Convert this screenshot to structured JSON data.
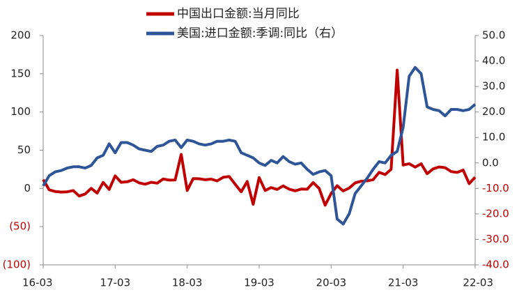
{
  "chart_data": {
    "type": "line",
    "x": [
      "16-03",
      null,
      null,
      null,
      null,
      null,
      null,
      null,
      null,
      null,
      null,
      null,
      "17-03",
      null,
      null,
      null,
      null,
      null,
      null,
      null,
      null,
      null,
      null,
      null,
      "18-03",
      null,
      null,
      null,
      null,
      null,
      null,
      null,
      null,
      null,
      null,
      null,
      "19-03",
      null,
      null,
      null,
      null,
      null,
      null,
      null,
      null,
      null,
      null,
      null,
      "20-03",
      null,
      null,
      null,
      null,
      null,
      null,
      null,
      null,
      null,
      null,
      null,
      "21-03",
      null,
      null,
      null,
      null,
      null,
      null,
      null,
      null,
      null,
      null,
      null,
      "22-03"
    ],
    "series": [
      {
        "name": "中国出口金额:当月同比",
        "color": "#c00000",
        "values": [
          11.5,
          -1.8,
          -4.1,
          -4.8,
          -4.4,
          -2.8,
          -10,
          -7.3,
          0.1,
          -6.1,
          7.9,
          -1.3,
          16.4,
          8,
          8.7,
          11.3,
          7.2,
          5.5,
          8.1,
          6.9,
          12.3,
          10.9,
          11.1,
          44.5,
          -2.7,
          12.9,
          12.6,
          11.3,
          12.2,
          9.8,
          14.5,
          15.6,
          5.4,
          -4.4,
          9.1,
          -20.8,
          14.2,
          -2.7,
          1.1,
          -1.3,
          3.3,
          -1,
          -3.2,
          -0.9,
          -1.1,
          7.6,
          0,
          -22,
          -6.6,
          3.5,
          -3.3,
          0.5,
          7.2,
          9.5,
          9.9,
          11.4,
          21.1,
          18.1,
          25,
          154.9,
          30.6,
          32.3,
          27.9,
          32.2,
          19.3,
          25.6,
          28.1,
          27.1,
          22,
          20.9,
          24,
          6.2,
          14.7
        ]
      },
      {
        "name": "美国:进口金额:季调:同比（右）",
        "color": "#2e5597",
        "axis": "y2",
        "values": [
          -9,
          -5,
          -3.5,
          -3,
          -2,
          -1.5,
          -1.5,
          -2,
          -1,
          2,
          3,
          7.5,
          4,
          8,
          8,
          7,
          5.5,
          5,
          4.5,
          6.5,
          7,
          8.5,
          9,
          6,
          9,
          8.5,
          7.5,
          7,
          7.5,
          8.5,
          8.5,
          9,
          8.5,
          4,
          3,
          2,
          0,
          -1,
          1,
          0,
          2.5,
          0.5,
          -0.5,
          0,
          -2.5,
          -4.5,
          -3.5,
          -3,
          -5,
          -22,
          -24,
          -20,
          -12,
          -9,
          -6,
          -2.5,
          0.5,
          0,
          3,
          4.5,
          14,
          34,
          37.5,
          35,
          22,
          21,
          20.5,
          18.5,
          21,
          21,
          20.5,
          21,
          23
        ]
      }
    ],
    "ylim": [
      -100,
      200
    ],
    "yticks": [
      {
        "value": -100,
        "label": "(100)"
      },
      {
        "value": -50,
        "label": "(50)"
      },
      0,
      50,
      100,
      150,
      200
    ],
    "y2lim": [
      -40,
      50
    ],
    "y2ticks": [
      {
        "value": -40,
        "label": "-40.0"
      },
      {
        "value": -30,
        "label": "-30.0"
      },
      {
        "value": -20,
        "label": "-20.0"
      },
      {
        "value": -10,
        "label": "-10.0"
      },
      {
        "value": 0,
        "label": "0.0"
      },
      {
        "value": 10,
        "label": "10.0"
      },
      {
        "value": 20,
        "label": "20.0"
      },
      {
        "value": 30,
        "label": "30.0"
      },
      {
        "value": 40,
        "label": "40.0"
      },
      {
        "value": 50,
        "label": "50.0"
      }
    ]
  }
}
